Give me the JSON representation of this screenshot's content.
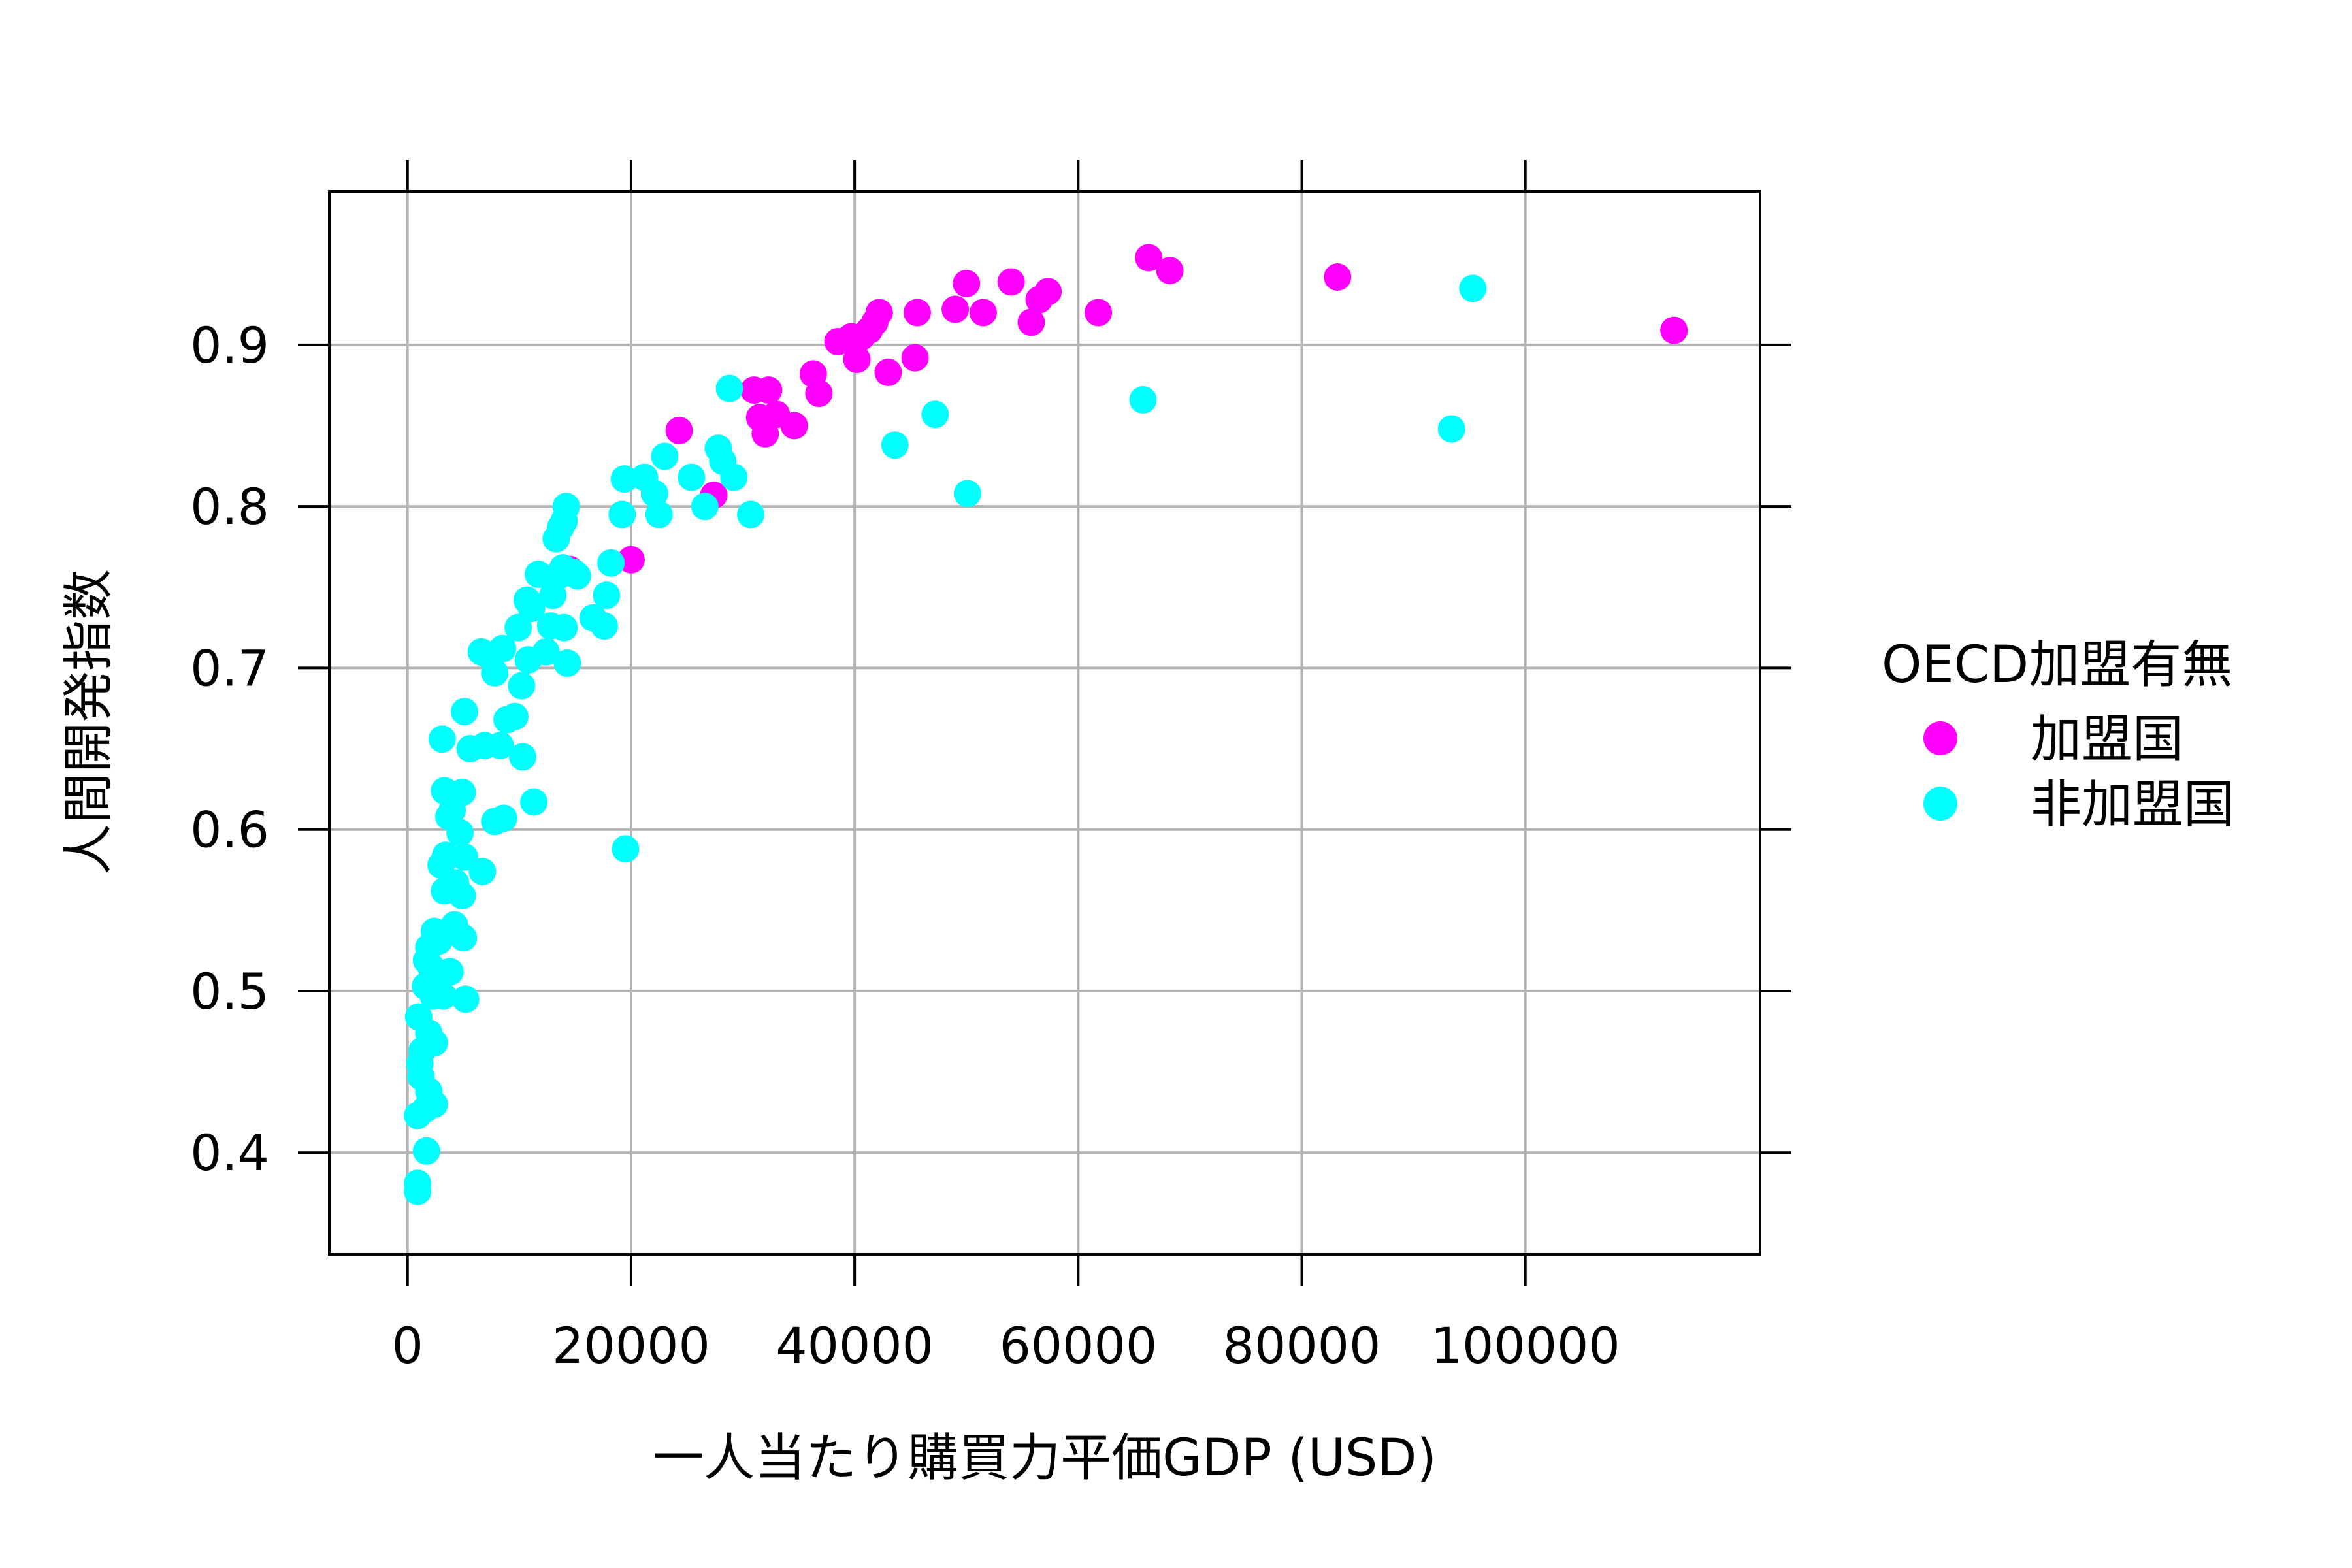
{
  "chart_data": {
    "type": "scatter",
    "xlabel": "一人当たり購買力平価GDP (USD)",
    "ylabel": "人間開発指数",
    "xlim": [
      -7000,
      121000
    ],
    "ylim": [
      0.337,
      0.995
    ],
    "x_ticks": [
      0,
      20000,
      40000,
      60000,
      80000,
      100000
    ],
    "x_tick_labels": [
      "0",
      "20000",
      "40000",
      "60000",
      "80000",
      "100000"
    ],
    "y_ticks": [
      0.4,
      0.5,
      0.6,
      0.7,
      0.8,
      0.9
    ],
    "y_tick_labels": [
      "0.4",
      "0.5",
      "0.6",
      "0.7",
      "0.8",
      "0.9"
    ],
    "grid": true,
    "legend": {
      "title": "OECD加盟有無",
      "placement": "right",
      "entries": [
        {
          "label": "加盟国",
          "color": "#FF00FF"
        },
        {
          "label": "非加盟国",
          "color": "#00FFFF"
        }
      ]
    },
    "series": [
      {
        "name": "加盟国",
        "color": "#FF00FF",
        "points": [
          [
            14500,
            0.761
          ],
          [
            20000,
            0.767
          ],
          [
            24300,
            0.847
          ],
          [
            27400,
            0.807
          ],
          [
            31000,
            0.872
          ],
          [
            31500,
            0.855
          ],
          [
            32000,
            0.845
          ],
          [
            32300,
            0.872
          ],
          [
            33000,
            0.857
          ],
          [
            34600,
            0.85
          ],
          [
            36300,
            0.882
          ],
          [
            36800,
            0.87
          ],
          [
            38500,
            0.902
          ],
          [
            39700,
            0.905
          ],
          [
            40200,
            0.891
          ],
          [
            40600,
            0.905
          ],
          [
            41300,
            0.909
          ],
          [
            41800,
            0.914
          ],
          [
            42200,
            0.92
          ],
          [
            43000,
            0.883
          ],
          [
            45400,
            0.892
          ],
          [
            45600,
            0.92
          ],
          [
            49000,
            0.922
          ],
          [
            50000,
            0.938
          ],
          [
            51500,
            0.92
          ],
          [
            54000,
            0.939
          ],
          [
            55800,
            0.914
          ],
          [
            56500,
            0.928
          ],
          [
            57300,
            0.933
          ],
          [
            61800,
            0.92
          ],
          [
            66300,
            0.954
          ],
          [
            68200,
            0.946
          ],
          [
            83200,
            0.942
          ],
          [
            113300,
            0.909
          ]
        ]
      },
      {
        "name": "非加盟国",
        "color": "#00FFFF",
        "points": [
          [
            28800,
            0.873
          ],
          [
            27800,
            0.836
          ],
          [
            28200,
            0.828
          ],
          [
            29200,
            0.818
          ],
          [
            30700,
            0.795
          ],
          [
            26600,
            0.8
          ],
          [
            25400,
            0.818
          ],
          [
            23000,
            0.831
          ],
          [
            22500,
            0.795
          ],
          [
            21200,
            0.818
          ],
          [
            19400,
            0.817
          ],
          [
            19200,
            0.795
          ],
          [
            22100,
            0.808
          ],
          [
            18200,
            0.765
          ],
          [
            17800,
            0.745
          ],
          [
            17600,
            0.726
          ],
          [
            16600,
            0.731
          ],
          [
            15200,
            0.757
          ],
          [
            14900,
            0.759
          ],
          [
            14200,
            0.8
          ],
          [
            14000,
            0.791
          ],
          [
            13700,
            0.787
          ],
          [
            13300,
            0.78
          ],
          [
            13900,
            0.762
          ],
          [
            13500,
            0.757
          ],
          [
            13000,
            0.745
          ],
          [
            12800,
            0.726
          ],
          [
            14000,
            0.725
          ],
          [
            14300,
            0.703
          ],
          [
            12400,
            0.71
          ],
          [
            11700,
            0.758
          ],
          [
            11100,
            0.737
          ],
          [
            10700,
            0.742
          ],
          [
            9900,
            0.725
          ],
          [
            10200,
            0.689
          ],
          [
            10800,
            0.705
          ],
          [
            9600,
            0.67
          ],
          [
            8900,
            0.668
          ],
          [
            8500,
            0.712
          ],
          [
            7800,
            0.697
          ],
          [
            7200,
            0.708
          ],
          [
            6600,
            0.71
          ],
          [
            8300,
            0.652
          ],
          [
            6900,
            0.652
          ],
          [
            5600,
            0.65
          ],
          [
            5100,
            0.673
          ],
          [
            3100,
            0.656
          ],
          [
            7800,
            0.605
          ],
          [
            8600,
            0.607
          ],
          [
            11300,
            0.617
          ],
          [
            10300,
            0.645
          ],
          [
            4900,
            0.623
          ],
          [
            3300,
            0.624
          ],
          [
            3700,
            0.608
          ],
          [
            4000,
            0.612
          ],
          [
            4700,
            0.598
          ],
          [
            3400,
            0.584
          ],
          [
            3000,
            0.578
          ],
          [
            5100,
            0.583
          ],
          [
            6700,
            0.574
          ],
          [
            4300,
            0.567
          ],
          [
            3300,
            0.562
          ],
          [
            4900,
            0.559
          ],
          [
            2400,
            0.537
          ],
          [
            2800,
            0.531
          ],
          [
            4200,
            0.541
          ],
          [
            5000,
            0.533
          ],
          [
            1900,
            0.527
          ],
          [
            1700,
            0.519
          ],
          [
            2100,
            0.515
          ],
          [
            2800,
            0.51
          ],
          [
            3800,
            0.512
          ],
          [
            1600,
            0.503
          ],
          [
            2300,
            0.497
          ],
          [
            3200,
            0.497
          ],
          [
            5200,
            0.495
          ],
          [
            1000,
            0.484
          ],
          [
            1900,
            0.474
          ],
          [
            1300,
            0.463
          ],
          [
            2400,
            0.468
          ],
          [
            1100,
            0.455
          ],
          [
            1200,
            0.447
          ],
          [
            1900,
            0.438
          ],
          [
            2400,
            0.43
          ],
          [
            1600,
            0.427
          ],
          [
            900,
            0.423
          ],
          [
            1700,
            0.401
          ],
          [
            900,
            0.381
          ],
          [
            900,
            0.376
          ],
          [
            19500,
            0.588
          ],
          [
            43600,
            0.838
          ],
          [
            47200,
            0.857
          ],
          [
            50100,
            0.808
          ],
          [
            65800,
            0.866
          ],
          [
            93400,
            0.848
          ],
          [
            95300,
            0.935
          ]
        ]
      }
    ]
  }
}
